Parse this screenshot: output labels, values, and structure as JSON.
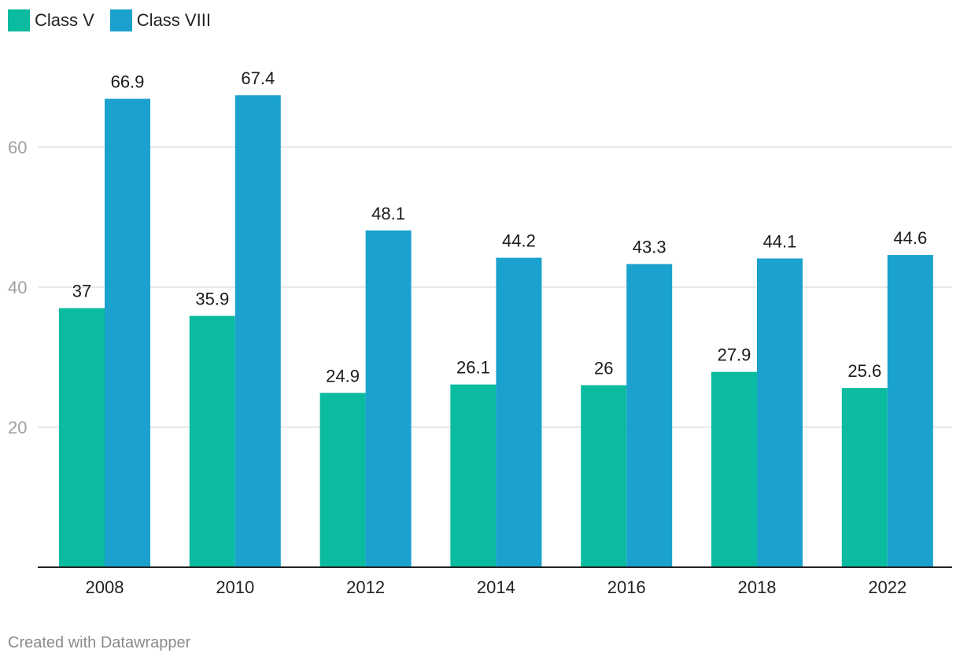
{
  "chart_data": {
    "type": "bar",
    "categories": [
      "2008",
      "2010",
      "2012",
      "2014",
      "2016",
      "2018",
      "2022"
    ],
    "series": [
      {
        "name": "Class V",
        "color": "#0abb9f",
        "values": [
          37,
          35.9,
          24.9,
          26.1,
          26,
          27.9,
          25.6
        ]
      },
      {
        "name": "Class VIII",
        "color": "#1aa1cd",
        "values": [
          66.9,
          67.4,
          48.1,
          44.2,
          43.3,
          44.1,
          44.6
        ]
      }
    ],
    "yticks": [
      20,
      40,
      60
    ],
    "ylim": [
      0,
      75
    ],
    "grid": true,
    "legend_position": "top-left",
    "title": "",
    "xlabel": "",
    "ylabel": ""
  },
  "credit": "Created with Datawrapper"
}
